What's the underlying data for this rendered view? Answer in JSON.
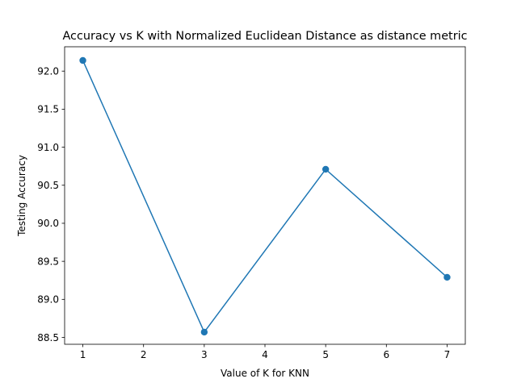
{
  "chart_data": {
    "type": "line",
    "title": "Accuracy vs K with Normalized Euclidean Distance as distance metric",
    "xlabel": "Value of K for KNN",
    "ylabel": "Testing Accuracy",
    "x": [
      1,
      3,
      5,
      7
    ],
    "series": [
      {
        "values": [
          92.14,
          88.57,
          90.71,
          89.29
        ],
        "color": "#1f77b4",
        "marker": "circle"
      }
    ],
    "xticks": [
      1,
      2,
      3,
      4,
      5,
      6,
      7
    ],
    "yticks": [
      88.5,
      89.0,
      89.5,
      90.0,
      90.5,
      91.0,
      91.5,
      92.0
    ],
    "xlim": [
      0.7,
      7.3
    ],
    "ylim": [
      88.41,
      92.32
    ],
    "grid": false,
    "legend": "none"
  }
}
